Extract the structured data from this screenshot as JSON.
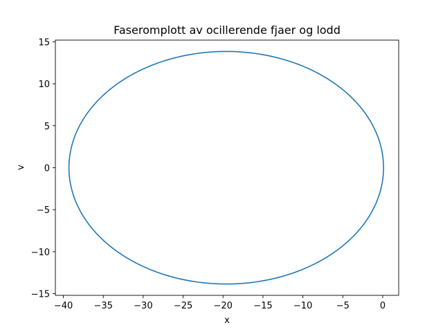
{
  "chart_data": {
    "type": "line",
    "title": "Faseromplott av ocillerende fjaer og lodd",
    "xlabel": "x",
    "ylabel": "v",
    "xlim": [
      -41.0,
      2.0
    ],
    "ylim": [
      -15.2,
      15.2
    ],
    "xticks": [
      -40,
      -35,
      -30,
      -25,
      -20,
      -15,
      -10,
      -5,
      0
    ],
    "yticks": [
      -15,
      -10,
      -5,
      0,
      5,
      10,
      15
    ],
    "xtick_labels": [
      "−40",
      "−35",
      "−30",
      "−25",
      "−20",
      "−15",
      "−10",
      "−5",
      "0"
    ],
    "ytick_labels": [
      "−15",
      "−10",
      "−5",
      "0",
      "5",
      "10",
      "15"
    ],
    "grid": false,
    "series": [
      {
        "color": "#1f77b4",
        "shape": "ellipse",
        "center": [
          -19.6,
          0.0
        ],
        "x_radius": 19.7,
        "y_radius": 13.85
      }
    ]
  }
}
